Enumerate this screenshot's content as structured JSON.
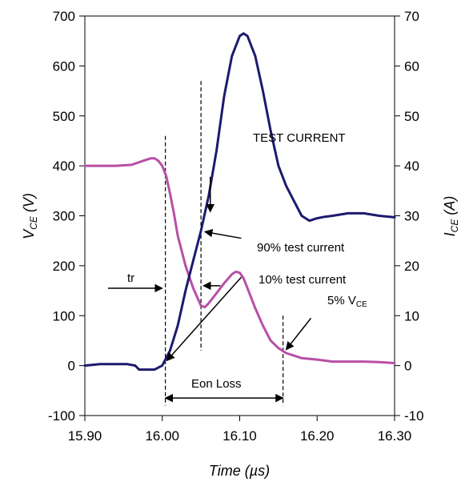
{
  "chart_data": {
    "type": "line",
    "title": "",
    "xlabel": "Time (µs)",
    "xlim": [
      15.9,
      16.3
    ],
    "x_ticks": [
      "15.90",
      "16.00",
      "16.10",
      "16.20",
      "16.30"
    ],
    "y_left": {
      "label_main": "V",
      "label_sub": "CE",
      "label_unit": " (V)",
      "lim": [
        -100,
        700
      ],
      "ticks": [
        "-100",
        "0",
        "100",
        "200",
        "300",
        "400",
        "500",
        "600",
        "700"
      ]
    },
    "y_right": {
      "label_main": "I",
      "label_sub": "CE",
      "label_unit": " (A)",
      "lim": [
        -10,
        70
      ],
      "ticks": [
        "-10",
        "0",
        "10",
        "20",
        "30",
        "40",
        "50",
        "60",
        "70"
      ]
    },
    "colors": {
      "vce": "#b84fa5",
      "ice": "#1c1a6e"
    },
    "series": [
      {
        "key": "vce",
        "axis": "left",
        "x": [
          15.9,
          15.94,
          15.96,
          15.975,
          15.985,
          15.99,
          15.995,
          16.0,
          16.005,
          16.01,
          16.015,
          16.02,
          16.03,
          16.04,
          16.05,
          16.055,
          16.06,
          16.07,
          16.08,
          16.09,
          16.095,
          16.1,
          16.105,
          16.11,
          16.12,
          16.13,
          16.14,
          16.15,
          16.16,
          16.17,
          16.18,
          16.2,
          16.21,
          16.22,
          16.24,
          16.26,
          16.28,
          16.3
        ],
        "y": [
          400,
          400,
          402,
          410,
          415,
          415,
          410,
          400,
          380,
          345,
          305,
          260,
          200,
          155,
          120,
          117,
          125,
          145,
          165,
          183,
          188,
          186,
          175,
          155,
          115,
          80,
          50,
          35,
          25,
          20,
          15,
          12,
          10,
          8,
          8,
          8,
          7,
          5
        ]
      },
      {
        "key": "ice",
        "axis": "right",
        "x": [
          15.9,
          15.92,
          15.94,
          15.955,
          15.965,
          15.97,
          15.98,
          15.99,
          15.995,
          16.0,
          16.01,
          16.02,
          16.03,
          16.04,
          16.05,
          16.06,
          16.07,
          16.08,
          16.09,
          16.1,
          16.105,
          16.11,
          16.12,
          16.13,
          16.14,
          16.15,
          16.16,
          16.17,
          16.18,
          16.19,
          16.2,
          16.21,
          16.22,
          16.24,
          16.26,
          16.28,
          16.3
        ],
        "y": [
          0,
          0.3,
          0.3,
          0.3,
          0,
          -0.8,
          -0.8,
          -0.8,
          -0.4,
          0,
          3,
          8,
          15,
          21,
          27,
          34,
          43,
          54,
          62,
          66,
          66.5,
          66,
          62,
          55,
          47,
          40,
          36,
          33,
          30,
          29,
          29.5,
          29.8,
          30,
          30.5,
          30.5,
          30,
          29.7
        ]
      }
    ],
    "annotations": {
      "test_current": "TEST CURRENT",
      "pct90": "90% test current",
      "pct10": "10% test current",
      "vce5_main": "5% V",
      "vce5_sub": "CE",
      "tr": "tr",
      "eon": "Eon Loss"
    },
    "markers_x": {
      "t_start": 16.004,
      "t_90": 16.05,
      "t_end": 16.156,
      "tr_left": 15.93
    }
  }
}
